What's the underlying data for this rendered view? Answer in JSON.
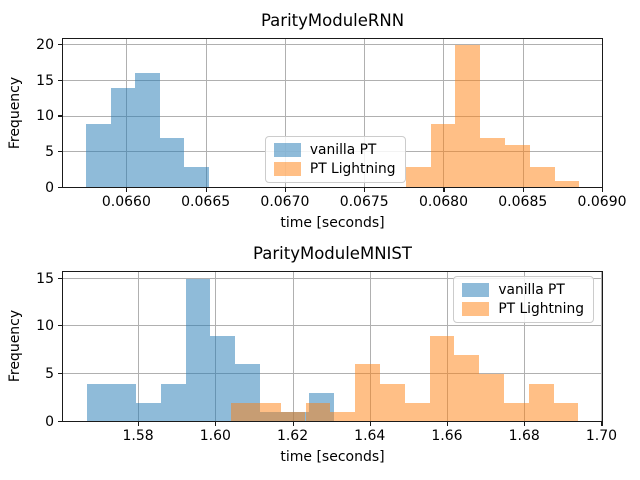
{
  "figure_bg": "#ffffff",
  "grid_color": "#b0b0b0",
  "spine_color": "#1a1a1a",
  "legend_items": [
    "vanilla PT",
    "PT Lightning"
  ],
  "chart_data": [
    {
      "type": "bar",
      "subtype": "histogram",
      "title": "ParityModuleRNN",
      "xlabel": "time [seconds]",
      "ylabel": "Frequency",
      "xlim": [
        0.065594,
        0.069006
      ],
      "ylim": [
        0,
        21
      ],
      "xticks": [
        0.066,
        0.0665,
        0.067,
        0.0675,
        0.068,
        0.0685,
        0.069
      ],
      "xtick_labels": [
        "0.0660",
        "0.0665",
        "0.0670",
        "0.0675",
        "0.0680",
        "0.0685",
        "0.0690"
      ],
      "yticks": [
        0,
        5,
        10,
        15,
        20
      ],
      "ytick_labels": [
        "0",
        "5",
        "10",
        "15",
        "20"
      ],
      "grid": true,
      "legend_position": "center",
      "series": [
        {
          "name": "vanilla PT",
          "color": "#1f77b4",
          "alpha": 0.5,
          "bin_start": 0.065746,
          "bin_width": 0.0001546,
          "counts": [
            9,
            14,
            16,
            7,
            3
          ]
        },
        {
          "name": "PT Lightning",
          "color": "#ff7f0e",
          "alpha": 0.5,
          "bin_start": 0.067762,
          "bin_width": 0.0001564,
          "counts": [
            3,
            9,
            20,
            7,
            6,
            3,
            1
          ]
        }
      ]
    },
    {
      "type": "bar",
      "subtype": "histogram",
      "title": "ParityModuleMNIST",
      "xlabel": "time [seconds]",
      "ylabel": "Frequency",
      "xlim": [
        1.5603,
        1.7004
      ],
      "ylim": [
        0,
        15.8
      ],
      "xticks": [
        1.58,
        1.6,
        1.62,
        1.64,
        1.66,
        1.68,
        1.7
      ],
      "xtick_labels": [
        "1.58",
        "1.60",
        "1.62",
        "1.64",
        "1.66",
        "1.68",
        "1.70"
      ],
      "yticks": [
        0,
        5,
        10,
        15
      ],
      "ytick_labels": [
        "0",
        "5",
        "10",
        "15"
      ],
      "grid": true,
      "legend_position": "upper right",
      "series": [
        {
          "name": "vanilla PT",
          "color": "#1f77b4",
          "alpha": 0.5,
          "bin_start": 1.56666,
          "bin_width": 0.006413,
          "counts": [
            4,
            4,
            2,
            4,
            15,
            9,
            6,
            1,
            1,
            3
          ]
        },
        {
          "name": "PT Lightning",
          "color": "#ff7f0e",
          "alpha": 0.5,
          "bin_start": 1.60408,
          "bin_width": 0.006426,
          "counts": [
            2,
            2,
            1,
            2,
            1,
            6,
            4,
            2,
            9,
            7,
            5,
            2,
            4,
            2
          ]
        }
      ]
    }
  ]
}
